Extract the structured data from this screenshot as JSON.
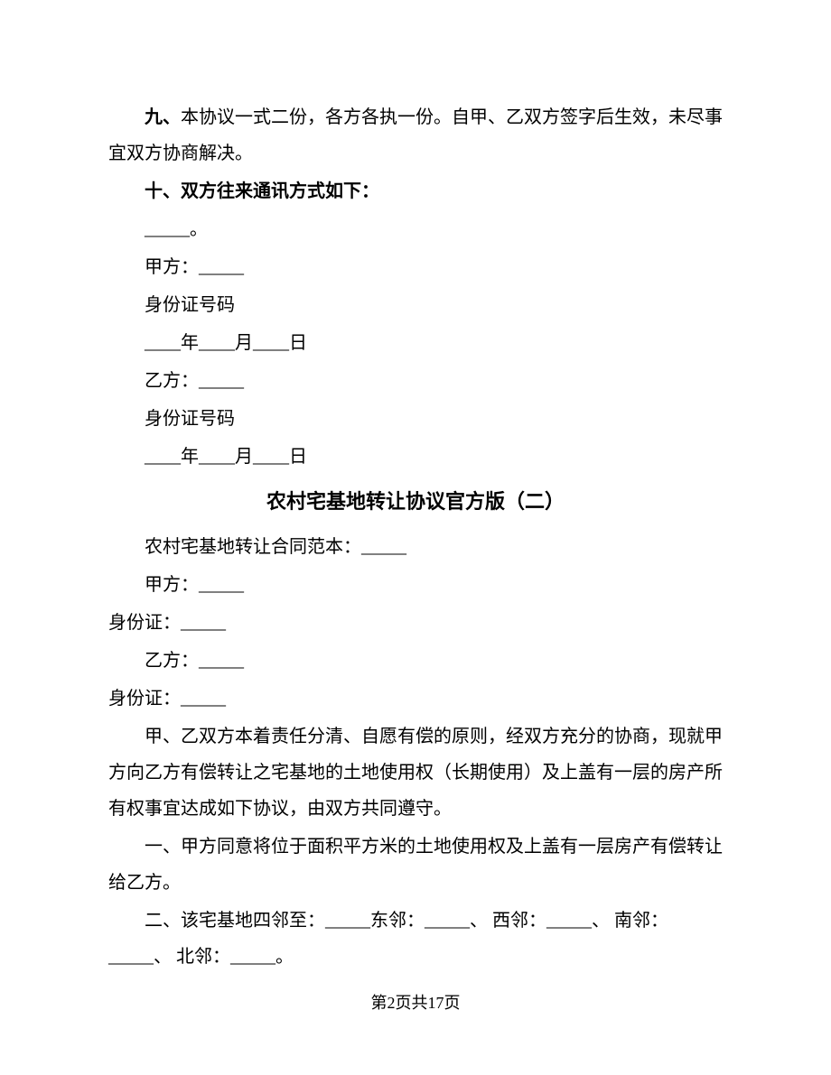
{
  "section1": {
    "clause9": "九、本协议一式二份，各方各执一份。自甲、乙双方签字后生效，未尽事宜双方协商解决。",
    "clause10_heading": "十、双方往来通讯方式如下：",
    "blank_period": "_____。",
    "party_a": "甲方：_____",
    "id_label_a": "身份证号码",
    "date_a": "____年____月____日",
    "party_b": "乙方：_____",
    "id_label_b": "身份证号码",
    "date_b": "____年____月____日"
  },
  "section2": {
    "title": "农村宅基地转让协议官方版（二）",
    "template_label": "农村宅基地转让合同范本：_____",
    "party_a": "甲方：_____",
    "id_a": "身份证：_____",
    "party_b": "乙方：_____",
    "id_b": "身份证：_____",
    "intro": "甲、乙双方本着责任分清、自愿有偿的原则，经双方充分的协商，现就甲方向乙方有偿转让之宅基地的土地使用权（长期使用）及上盖有一层的房产所有权事宜达成如下协议，由双方共同遵守。",
    "clause1": "一、甲方同意将位于面积平方米的土地使用权及上盖有一层房产有偿转让给乙方。",
    "clause2": "二、该宅基地四邻至：_____东邻：_____、 西邻：_____、 南邻：_____、 北邻：_____。"
  },
  "footer": {
    "pageinfo": "第2页共17页"
  }
}
